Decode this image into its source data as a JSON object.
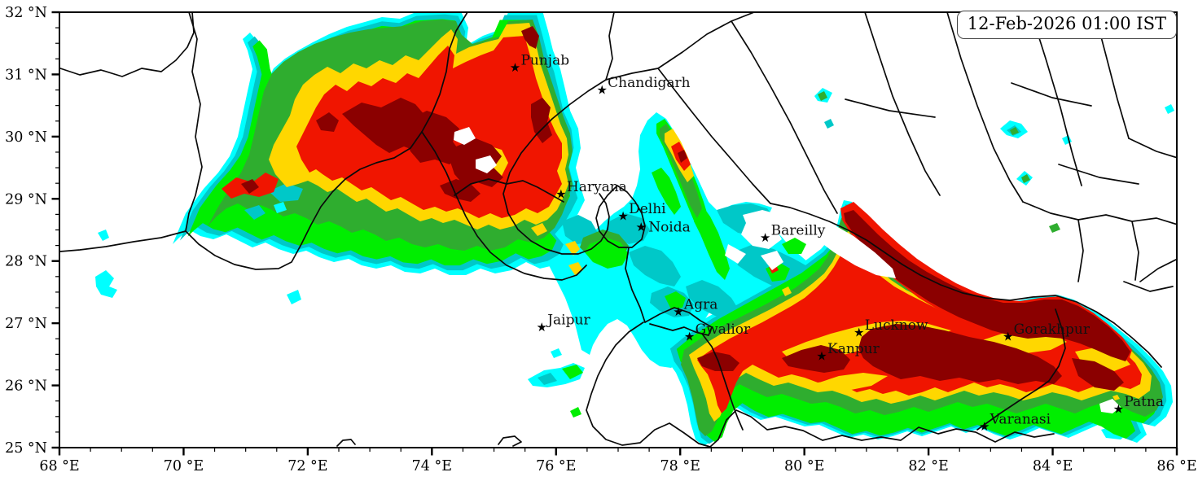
{
  "timestamp": "12-Feb-2026 01:00 IST",
  "extent": {
    "lon_min": 68,
    "lon_max": 86,
    "lat_min": 25,
    "lat_max": 32
  },
  "axes": {
    "x": {
      "unit": "°E",
      "major_ticks": [
        {
          "value": 68,
          "label": "68 °E"
        },
        {
          "value": 70,
          "label": "70 °E"
        },
        {
          "value": 72,
          "label": "72 °E"
        },
        {
          "value": 74,
          "label": "74 °E"
        },
        {
          "value": 76,
          "label": "76 °E"
        },
        {
          "value": 78,
          "label": "78 °E"
        },
        {
          "value": 80,
          "label": "80 °E"
        },
        {
          "value": 82,
          "label": "82 °E"
        },
        {
          "value": 84,
          "label": "84 °E"
        },
        {
          "value": 86,
          "label": "86 °E"
        }
      ],
      "minor_step": 0.5
    },
    "y": {
      "unit": "°N",
      "major_ticks": [
        {
          "value": 25,
          "label": "25 °N"
        },
        {
          "value": 26,
          "label": "26 °N"
        },
        {
          "value": 27,
          "label": "27 °N"
        },
        {
          "value": 28,
          "label": "28 °N"
        },
        {
          "value": 29,
          "label": "29 °N"
        },
        {
          "value": 30,
          "label": "30 °N"
        },
        {
          "value": 31,
          "label": "31 °N"
        },
        {
          "value": 32,
          "label": "32 °N"
        }
      ],
      "minor_step": 0.25
    }
  },
  "cities": [
    {
      "name": "Punjab",
      "lon": 75.34,
      "lat": 31.12
    },
    {
      "name": "Chandigarh",
      "lon": 76.74,
      "lat": 30.76
    },
    {
      "name": "Haryana",
      "lon": 76.08,
      "lat": 29.08
    },
    {
      "name": "Delhi",
      "lon": 77.08,
      "lat": 28.73
    },
    {
      "name": "Noida",
      "lon": 77.37,
      "lat": 28.55,
      "label_dx": 9,
      "label_dy": 6
    },
    {
      "name": "Bareilly",
      "lon": 79.37,
      "lat": 28.38
    },
    {
      "name": "Agra",
      "lon": 77.97,
      "lat": 27.19
    },
    {
      "name": "Jaipur",
      "lon": 75.77,
      "lat": 26.94
    },
    {
      "name": "Gwalior",
      "lon": 78.15,
      "lat": 26.79
    },
    {
      "name": "Lucknow",
      "lon": 80.88,
      "lat": 26.86
    },
    {
      "name": "Kanpur",
      "lon": 80.28,
      "lat": 26.48
    },
    {
      "name": "Gorakhpur",
      "lon": 83.28,
      "lat": 26.79
    },
    {
      "name": "Varanasi",
      "lon": 82.9,
      "lat": 25.35
    },
    {
      "name": "Patna",
      "lon": 85.06,
      "lat": 25.63
    }
  ],
  "palette": {
    "levels": [
      {
        "rank": 1,
        "name": "cyan",
        "color": "#00FFFF"
      },
      {
        "rank": 2,
        "name": "teal",
        "color": "#00C8C8"
      },
      {
        "rank": 3,
        "name": "lime",
        "color": "#00EE00"
      },
      {
        "rank": 4,
        "name": "green",
        "color": "#2FAD2F"
      },
      {
        "rank": 5,
        "name": "gold",
        "color": "#FFD700"
      },
      {
        "rank": 6,
        "name": "red",
        "color": "#F01500"
      },
      {
        "rank": 7,
        "name": "darkred",
        "color": "#8B0000"
      }
    ]
  },
  "chart_data": {
    "type": "filled_contour_map",
    "title": "12-Feb-2026 01:00 IST",
    "x_range": [
      68,
      86
    ],
    "y_range": [
      25,
      32
    ],
    "x_tick_step": 2,
    "y_tick_step": 1,
    "grid": false,
    "intensity_levels_low_to_high": [
      "cyan",
      "teal",
      "lime",
      "green",
      "gold",
      "red",
      "darkred"
    ],
    "regions": [
      {
        "name": "northwest-punjab-plume",
        "approx_lon": [
          70.1,
          76.5
        ],
        "approx_lat": [
          27.9,
          32.0
        ],
        "max_level": "darkred"
      },
      {
        "name": "himalayan-foothill-sliver",
        "approx_lon": [
          77.4,
          78.4
        ],
        "approx_lat": [
          28.3,
          30.3
        ],
        "max_level": "darkred"
      },
      {
        "name": "central-doab-belt",
        "approx_lon": [
          75.7,
          81.5
        ],
        "approx_lat": [
          26.6,
          29.4
        ],
        "max_level": "green"
      },
      {
        "name": "southeast-indo-gangetic-mass",
        "approx_lon": [
          77.7,
          86.0
        ],
        "approx_lat": [
          25.0,
          29.1
        ],
        "max_level": "darkred"
      }
    ],
    "cities_marked": 14
  }
}
